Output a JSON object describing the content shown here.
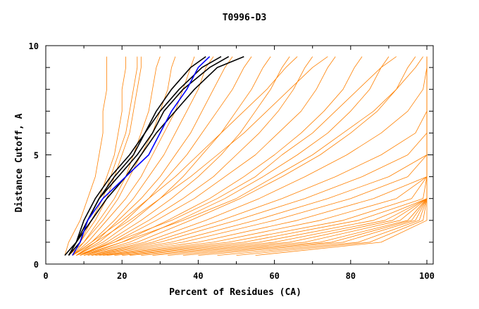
{
  "chart_data": {
    "type": "line",
    "title": "T0996-D3",
    "xlabel": "Percent of Residues (CA)",
    "ylabel": "Distance Cutoff, A",
    "xlim": [
      0,
      100
    ],
    "ylim": [
      0,
      10
    ],
    "x_ticks": [
      0,
      20,
      40,
      60,
      80,
      100
    ],
    "y_ticks": [
      0,
      5,
      10
    ],
    "x_tick_labels": [
      "0",
      "20",
      "40",
      "60",
      "80",
      "100"
    ],
    "y_tick_labels": [
      "0",
      "5",
      "10"
    ],
    "grid": false,
    "y_levels": [
      0.4,
      1,
      2,
      3,
      4,
      5,
      6,
      7,
      8,
      9,
      9.5
    ],
    "colors": {
      "other": "#ff8000",
      "highlight": "#000000",
      "best": "#0000ff"
    },
    "series": [
      {
        "name": "other",
        "x": [
          5,
          6,
          9,
          11,
          13,
          14,
          15,
          15,
          16,
          16,
          16
        ]
      },
      {
        "name": "other",
        "x": [
          6,
          8,
          11,
          14,
          16,
          18,
          19,
          20,
          20,
          21,
          21
        ]
      },
      {
        "name": "other",
        "x": [
          6,
          9,
          12,
          15,
          17,
          19,
          21,
          22,
          23,
          24,
          24
        ]
      },
      {
        "name": "other",
        "x": [
          6,
          9,
          13,
          16,
          18,
          20,
          22,
          23,
          24,
          25,
          25
        ]
      },
      {
        "name": "other",
        "x": [
          6,
          10,
          14,
          18,
          21,
          23,
          25,
          27,
          28,
          29,
          30
        ]
      },
      {
        "name": "other",
        "x": [
          7,
          10,
          15,
          19,
          22,
          25,
          28,
          30,
          32,
          33,
          34
        ]
      },
      {
        "name": "other",
        "x": [
          7,
          11,
          16,
          21,
          25,
          28,
          31,
          34,
          36,
          38,
          39
        ]
      },
      {
        "name": "other",
        "x": [
          7,
          12,
          18,
          23,
          27,
          31,
          34,
          37,
          40,
          42,
          44
        ]
      },
      {
        "name": "other",
        "x": [
          8,
          13,
          19,
          25,
          30,
          34,
          38,
          41,
          44,
          47,
          49
        ]
      },
      {
        "name": "other",
        "x": [
          8,
          14,
          21,
          27,
          32,
          37,
          41,
          45,
          49,
          52,
          54
        ]
      },
      {
        "name": "other",
        "x": [
          8,
          15,
          23,
          30,
          36,
          41,
          46,
          50,
          54,
          57,
          59
        ]
      },
      {
        "name": "other",
        "x": [
          9,
          16,
          25,
          33,
          40,
          46,
          51,
          55,
          59,
          62,
          64
        ]
      },
      {
        "name": "other",
        "x": [
          9,
          17,
          27,
          36,
          44,
          50,
          56,
          61,
          65,
          68,
          70
        ]
      },
      {
        "name": "other",
        "x": [
          9,
          18,
          29,
          39,
          47,
          55,
          61,
          67,
          71,
          74,
          76
        ]
      },
      {
        "name": "other",
        "x": [
          10,
          20,
          32,
          43,
          52,
          60,
          67,
          73,
          78,
          81,
          83
        ]
      },
      {
        "name": "other",
        "x": [
          10,
          22,
          35,
          47,
          57,
          66,
          74,
          80,
          85,
          88,
          90
        ]
      },
      {
        "name": "other",
        "x": [
          10,
          24,
          38,
          51,
          62,
          72,
          80,
          87,
          92,
          95,
          97
        ]
      },
      {
        "name": "other",
        "x": [
          11,
          26,
          42,
          56,
          68,
          79,
          88,
          95,
          99,
          100,
          100
        ]
      },
      {
        "name": "other",
        "x": [
          11,
          28,
          46,
          62,
          76,
          88,
          97,
          100,
          100,
          100,
          100
        ]
      },
      {
        "name": "other",
        "x": [
          12,
          30,
          50,
          68,
          83,
          95,
          100,
          100,
          100,
          100,
          100
        ]
      },
      {
        "name": "other",
        "x": [
          12,
          33,
          55,
          74,
          90,
          100,
          100,
          100,
          100,
          100,
          100
        ]
      },
      {
        "name": "other",
        "x": [
          13,
          36,
          60,
          80,
          95,
          100,
          100,
          100,
          100,
          100,
          100
        ]
      },
      {
        "name": "other",
        "x": [
          14,
          40,
          66,
          86,
          100,
          100,
          100,
          100,
          100,
          100,
          100
        ]
      },
      {
        "name": "other",
        "x": [
          15,
          44,
          72,
          92,
          100,
          100,
          100,
          100,
          100,
          100,
          100
        ]
      },
      {
        "name": "other",
        "x": [
          16,
          48,
          78,
          96,
          100,
          100,
          100,
          100,
          100,
          100,
          100
        ]
      },
      {
        "name": "other",
        "x": [
          18,
          52,
          82,
          99,
          100,
          100,
          100,
          100,
          100,
          100,
          100
        ]
      },
      {
        "name": "other",
        "x": [
          20,
          56,
          86,
          100,
          100,
          100,
          100,
          100,
          100,
          100,
          100
        ]
      },
      {
        "name": "other",
        "x": [
          22,
          60,
          89,
          100,
          100,
          100,
          100,
          100,
          100,
          100,
          100
        ]
      },
      {
        "name": "other",
        "x": [
          25,
          64,
          91,
          100,
          100,
          100,
          100,
          100,
          100,
          100,
          100
        ]
      },
      {
        "name": "other",
        "x": [
          28,
          68,
          93,
          100,
          100,
          100,
          100,
          100,
          100,
          100,
          100
        ]
      },
      {
        "name": "other",
        "x": [
          32,
          72,
          95,
          100,
          100,
          100,
          100,
          100,
          100,
          100,
          100
        ]
      },
      {
        "name": "other",
        "x": [
          36,
          75,
          96,
          100,
          100,
          100,
          100,
          100,
          100,
          100,
          100
        ]
      },
      {
        "name": "other",
        "x": [
          40,
          78,
          97,
          100,
          100,
          100,
          100,
          100,
          100,
          100,
          100
        ]
      },
      {
        "name": "other",
        "x": [
          45,
          82,
          98,
          100,
          100,
          100,
          100,
          100,
          100,
          100,
          100
        ]
      },
      {
        "name": "other",
        "x": [
          50,
          85,
          99,
          100,
          100,
          100,
          100,
          100,
          100,
          100,
          100
        ]
      },
      {
        "name": "other",
        "x": [
          55,
          88,
          100,
          100,
          100,
          100,
          100,
          100,
          100,
          100,
          100
        ]
      },
      {
        "name": "other",
        "x": [
          8,
          18,
          33,
          45,
          55,
          62,
          70,
          76,
          82,
          88,
          92
        ]
      },
      {
        "name": "other",
        "x": [
          9,
          20,
          36,
          50,
          60,
          70,
          78,
          86,
          92,
          97,
          99
        ]
      },
      {
        "name": "other",
        "x": [
          7,
          13,
          22,
          30,
          38,
          45,
          52,
          58,
          64,
          70,
          74
        ]
      },
      {
        "name": "other",
        "x": [
          7,
          12,
          20,
          27,
          34,
          40,
          46,
          52,
          58,
          63,
          66
        ]
      },
      {
        "name": "highlight",
        "x": [
          6,
          8,
          10,
          13,
          17,
          22,
          26,
          30,
          35,
          41,
          46
        ]
      },
      {
        "name": "highlight",
        "x": [
          6,
          9,
          11,
          14,
          19,
          24,
          28,
          31,
          36,
          43,
          48
        ]
      },
      {
        "name": "highlight",
        "x": [
          6,
          8,
          12,
          16,
          21,
          25,
          29,
          34,
          39,
          45,
          52
        ]
      },
      {
        "name": "highlight",
        "x": [
          5,
          8,
          11,
          14,
          18,
          23,
          26,
          29,
          33,
          38,
          42
        ]
      },
      {
        "name": "best",
        "x": [
          7,
          9,
          11,
          15,
          21,
          27,
          30,
          33,
          37,
          40,
          43
        ]
      }
    ]
  }
}
